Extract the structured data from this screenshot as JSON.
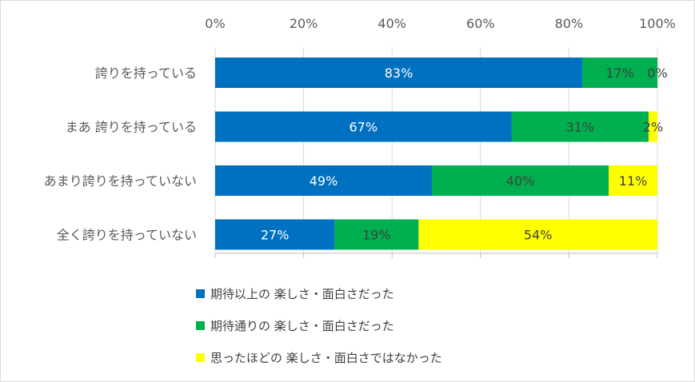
{
  "chart_data": {
    "type": "bar",
    "orientation": "horizontal",
    "stacked": "percent",
    "categories": [
      "誇りを持っている",
      "まあ 誇りを持っている",
      "あまり誇りを持っていない",
      "全く誇りを持っていない"
    ],
    "series": [
      {
        "name": "期待以上の 楽しさ・面白さだった",
        "color": "#0070c0",
        "label_color": "#ffffff",
        "values": [
          83,
          67,
          49,
          27
        ],
        "labels": [
          "83%",
          "67%",
          "49%",
          "27%"
        ]
      },
      {
        "name": "期待通りの 楽しさ・面白さだった",
        "color": "#00b050",
        "label_color": "#404040",
        "values": [
          17,
          31,
          40,
          19
        ],
        "labels": [
          "17%",
          "31%",
          "40%",
          "19%"
        ]
      },
      {
        "name": "思ったほどの 楽しさ・面白さではなかった",
        "color": "#ffff00",
        "label_color": "#404040",
        "values": [
          0,
          2,
          11,
          54
        ],
        "labels": [
          "0%",
          "2%",
          "11%",
          "54%"
        ]
      }
    ],
    "xlim": [
      0,
      100
    ],
    "x_ticks": [
      "0%",
      "20%",
      "40%",
      "60%",
      "80%",
      "100%"
    ],
    "axis_position": "top",
    "grid": true,
    "legend_position": "bottom"
  }
}
